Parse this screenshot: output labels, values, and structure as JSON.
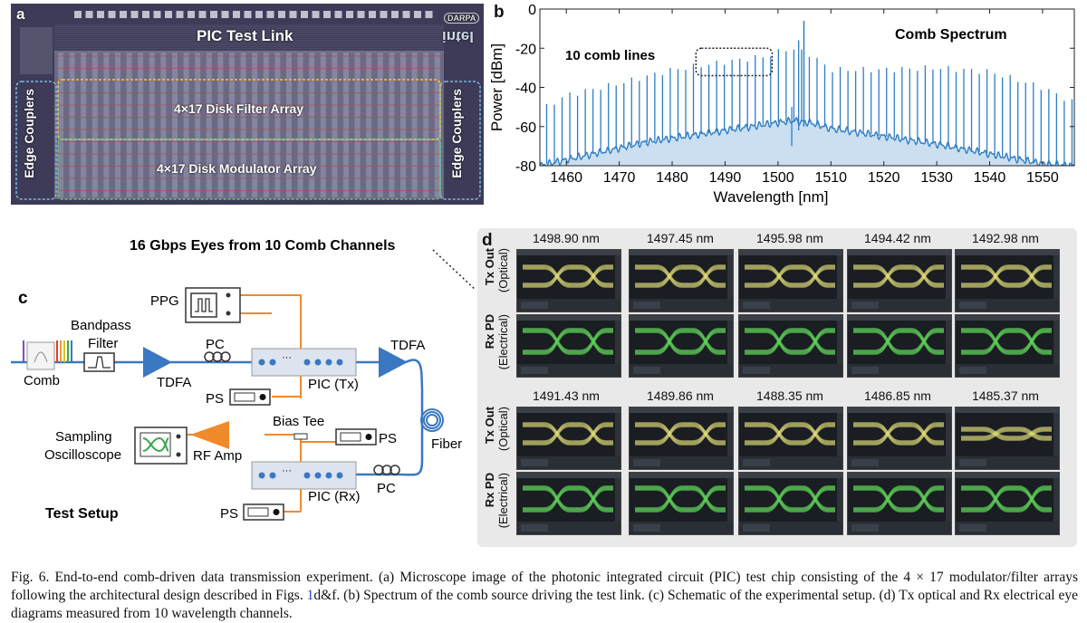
{
  "panel_a": {
    "label": "a",
    "title": "PIC Test Link",
    "filter_array": "4×17 Disk Filter Array",
    "modulator_array": "4×17 Disk Modulator Array",
    "edge_couplers_left": "Edge Couplers",
    "edge_couplers_right": "Edge Couplers",
    "logo_top": "DARPA",
    "logo_bottom": "intel"
  },
  "panel_b": {
    "label": "b",
    "chart_data": {
      "type": "line",
      "title": "Comb Spectrum",
      "xlabel": "Wavelength [nm]",
      "ylabel": "Power [dBm]",
      "xlim": [
        1455,
        1556
      ],
      "ylim": [
        -80,
        0
      ],
      "xticks": [
        1460,
        1470,
        1480,
        1490,
        1500,
        1510,
        1520,
        1530,
        1540,
        1550
      ],
      "yticks": [
        0,
        -20,
        -40,
        -60,
        -80
      ],
      "annotation": "10 comb lines",
      "annotation_box_x": [
        1484.5,
        1498.9
      ],
      "series": [
        {
          "comb_spacing_nm": 1.46,
          "center_nm": 1503,
          "peak_nm": 1504.9,
          "peak_dBm": -6,
          "peak_envelope_dBm": [
            [
              1455,
              -52
            ],
            [
              1460,
              -44
            ],
            [
              1470,
              -38
            ],
            [
              1480,
              -31
            ],
            [
              1490,
              -27
            ],
            [
              1498,
              -24
            ],
            [
              1502,
              -20
            ],
            [
              1506,
              -23
            ],
            [
              1510,
              -31
            ],
            [
              1520,
              -31
            ],
            [
              1530,
              -30
            ],
            [
              1540,
              -32
            ],
            [
              1550,
              -40
            ],
            [
              1556,
              -48
            ]
          ],
          "floor_envelope_dBm": [
            [
              1455,
              -80
            ],
            [
              1465,
              -74
            ],
            [
              1475,
              -68
            ],
            [
              1485,
              -64
            ],
            [
              1495,
              -60
            ],
            [
              1500,
              -58
            ],
            [
              1503,
              -57
            ],
            [
              1506,
              -58
            ],
            [
              1510,
              -61
            ],
            [
              1520,
              -65
            ],
            [
              1530,
              -69
            ],
            [
              1540,
              -74
            ],
            [
              1550,
              -79
            ],
            [
              1556,
              -80
            ]
          ]
        }
      ],
      "color": "#2e7ec5"
    }
  },
  "panel_c": {
    "label": "c",
    "eyes_title": "16 Gbps Eyes from 10 Comb Channels",
    "ppg": "PPG",
    "bandpass_filter": "Bandpass\nFilter",
    "pc_top": "PC",
    "tdfa_left": "TDFA",
    "tdfa_right": "TDFA",
    "comb": "Comb",
    "ps_tx": "PS",
    "pic_tx": "PIC (Tx)",
    "bias_tee": "Bias Tee",
    "ps_bias": "PS",
    "sampling_osc": "Sampling\nOscilloscope",
    "rf_amp": "RF Amp",
    "fiber": "Fiber",
    "pc_bottom": "PC",
    "pic_rx": "PIC (Rx)",
    "ps_rx": "PS",
    "test_setup": "Test Setup",
    "pic_dots": "···",
    "colors": {
      "optical": "#3a78c2",
      "electrical": "#ef8a2b"
    }
  },
  "panel_d": {
    "label": "d",
    "row_labels": {
      "tx_bold": "Tx Out",
      "tx_sub": "(Optical)",
      "rx_bold": "Rx PD",
      "rx_sub": "(Electrical)"
    },
    "group1": [
      "1498.90 nm",
      "1497.45 nm",
      "1495.98 nm",
      "1494.42 nm",
      "1492.98 nm"
    ],
    "group2": [
      "1491.43 nm",
      "1489.86 nm",
      "1488.35 nm",
      "1486.85 nm",
      "1485.37 nm"
    ],
    "optical_color": "#e3e07a",
    "electrical_color": "#5fd15a"
  },
  "caption": {
    "part1": "Fig. 6.  End-to-end comb-driven data transmission experiment. (a) Microscope image of the photonic integrated circuit (PIC) test chip consisting of the 4 × 17 modulator/filter arrays following the architectural design described in Figs. ",
    "ref": "1",
    "part2": "d&f. (b) Spectrum of the comb source driving the test link. (c) Schematic of the experimental setup. (d) Tx optical and Rx electrical eye diagrams measured from 10 wavelength channels."
  }
}
